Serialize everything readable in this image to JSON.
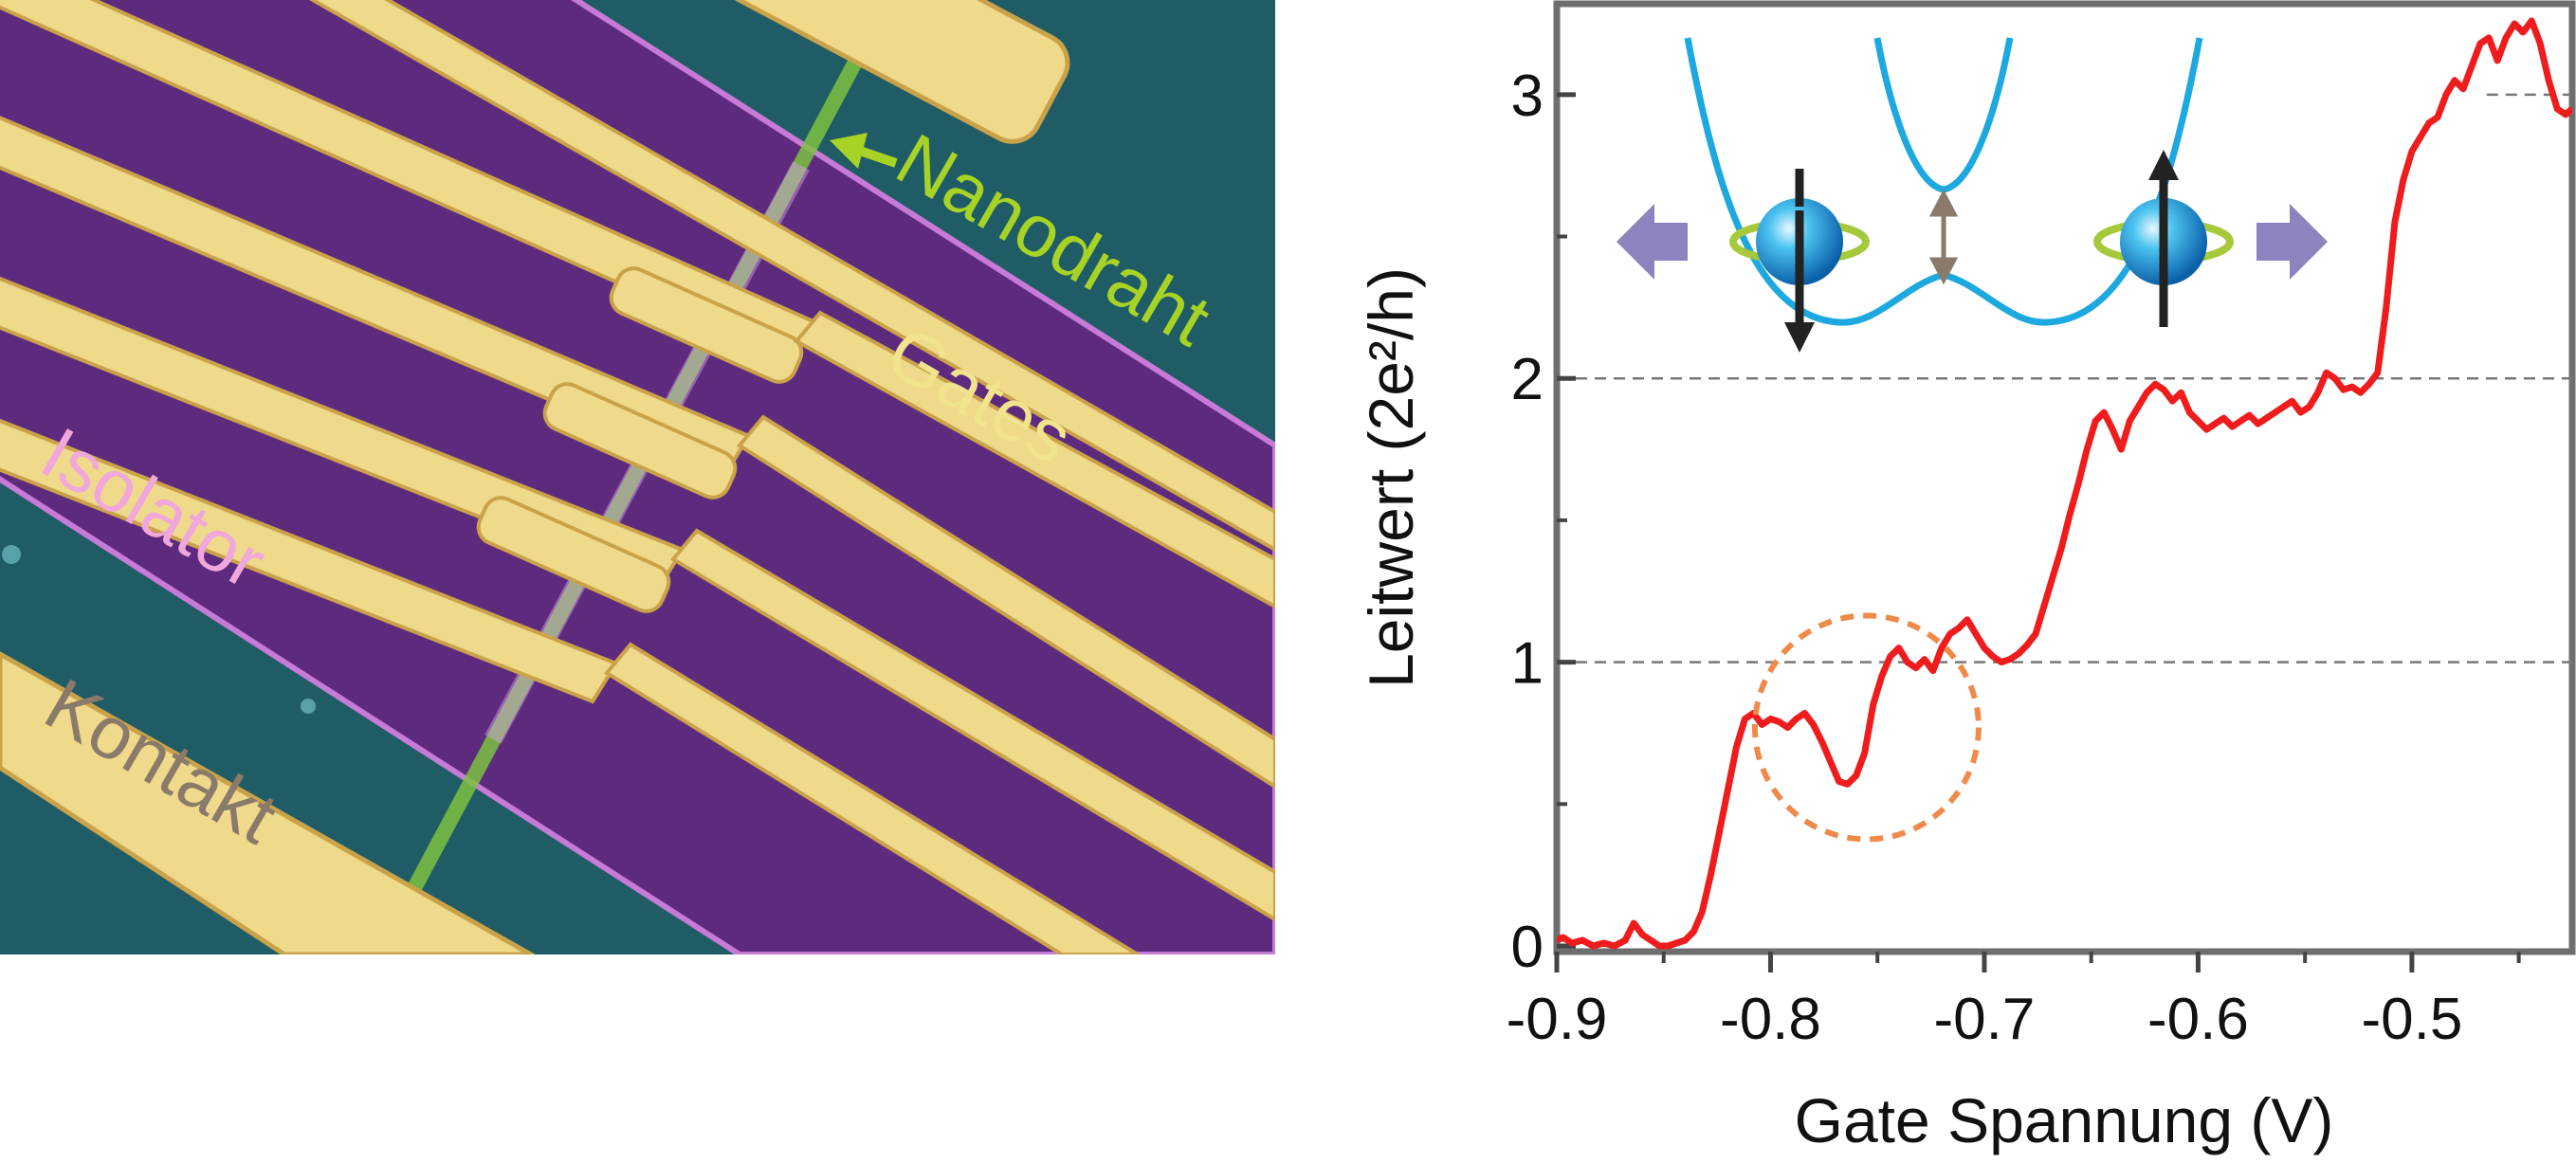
{
  "sem_image": {
    "labels": {
      "nanowire": "Nanodraht",
      "gates": "Gates",
      "insulator": "Isolator",
      "contact": "Kontakt"
    },
    "colors": {
      "background": "#1f5c66",
      "insulator": "#5e2a7e",
      "insulator_edge": "#c77ad6",
      "gate": "#efd98a",
      "gate_edge": "#c9a24a",
      "nanowire": "#7cc241",
      "nanowire_label": "#a7d226",
      "gates_label": "#f2e38e",
      "insulator_label": "#f0a8dc",
      "contact_label": "#8a7a6a"
    }
  },
  "inset": {
    "band_color": "#1ea8e0",
    "spin_ring_color": "#a5c93a",
    "arrow_color": "#8b84bf",
    "gap_arrow_color": "#8a7a6a",
    "spin_arrow_color": "#222222"
  },
  "chart_data": {
    "type": "line",
    "xlabel": "Gate Spannung (V)",
    "ylabel": "Leitwert (2e²/h)",
    "xlim": [
      -0.9,
      -0.425
    ],
    "ylim": [
      0,
      3.3
    ],
    "x_ticks": [
      -0.9,
      -0.8,
      -0.7,
      -0.6,
      -0.5
    ],
    "x_tick_labels": [
      "-0.9",
      "-0.8",
      "-0.7",
      "-0.6",
      "-0.5"
    ],
    "y_ticks": [
      0,
      1,
      2,
      3
    ],
    "y_tick_labels": [
      "0",
      "1",
      "2",
      "3"
    ],
    "reference_lines_y": [
      1,
      2,
      3
    ],
    "line_color": "#ee1c1c",
    "highlight_circle": {
      "center": [
        -0.755,
        0.77
      ],
      "color": "#f08a4b",
      "style": "dashed"
    },
    "series": [
      {
        "x": [
          -0.9,
          -0.897,
          -0.893,
          -0.888,
          -0.883,
          -0.878,
          -0.873,
          -0.868,
          -0.864,
          -0.86,
          -0.856,
          -0.852,
          -0.848,
          -0.844,
          -0.84,
          -0.836,
          -0.832,
          -0.828,
          -0.824,
          -0.82,
          -0.816,
          -0.812,
          -0.808,
          -0.804,
          -0.8,
          -0.796,
          -0.792,
          -0.788,
          -0.784,
          -0.78,
          -0.776,
          -0.772,
          -0.768,
          -0.764,
          -0.76,
          -0.756,
          -0.752,
          -0.748,
          -0.744,
          -0.74,
          -0.736,
          -0.732,
          -0.728,
          -0.724,
          -0.72,
          -0.716,
          -0.712,
          -0.708,
          -0.704,
          -0.7,
          -0.696,
          -0.692,
          -0.688,
          -0.684,
          -0.68,
          -0.676,
          -0.672,
          -0.668,
          -0.664,
          -0.66,
          -0.656,
          -0.652,
          -0.648,
          -0.644,
          -0.64,
          -0.636,
          -0.632,
          -0.628,
          -0.624,
          -0.62,
          -0.616,
          -0.612,
          -0.608,
          -0.604,
          -0.6,
          -0.596,
          -0.592,
          -0.588,
          -0.584,
          -0.58,
          -0.576,
          -0.572,
          -0.568,
          -0.564,
          -0.56,
          -0.556,
          -0.552,
          -0.548,
          -0.544,
          -0.54,
          -0.536,
          -0.532,
          -0.528,
          -0.524,
          -0.52,
          -0.516,
          -0.512,
          -0.508,
          -0.504,
          -0.5,
          -0.496,
          -0.492,
          -0.488,
          -0.484,
          -0.48,
          -0.476,
          -0.472,
          -0.468,
          -0.464,
          -0.46,
          -0.456,
          -0.452,
          -0.448,
          -0.444,
          -0.44,
          -0.436,
          -0.432,
          -0.428,
          -0.425
        ],
        "values": [
          0.02,
          0.03,
          0.01,
          0.02,
          0.0,
          0.01,
          0.0,
          0.02,
          0.08,
          0.04,
          0.02,
          0.0,
          0.0,
          0.01,
          0.02,
          0.05,
          0.12,
          0.25,
          0.4,
          0.55,
          0.7,
          0.8,
          0.82,
          0.78,
          0.8,
          0.79,
          0.77,
          0.8,
          0.82,
          0.78,
          0.72,
          0.65,
          0.58,
          0.57,
          0.6,
          0.68,
          0.85,
          0.95,
          1.02,
          1.05,
          1.0,
          0.98,
          1.01,
          0.97,
          1.05,
          1.1,
          1.12,
          1.15,
          1.1,
          1.05,
          1.02,
          1.0,
          1.01,
          1.03,
          1.06,
          1.1,
          1.2,
          1.3,
          1.4,
          1.52,
          1.63,
          1.75,
          1.85,
          1.88,
          1.82,
          1.75,
          1.85,
          1.9,
          1.95,
          1.98,
          1.96,
          1.92,
          1.95,
          1.88,
          1.85,
          1.82,
          1.84,
          1.86,
          1.83,
          1.85,
          1.87,
          1.84,
          1.86,
          1.88,
          1.9,
          1.92,
          1.88,
          1.9,
          1.95,
          2.02,
          2.0,
          1.96,
          1.97,
          1.95,
          1.98,
          2.02,
          2.25,
          2.55,
          2.7,
          2.8,
          2.85,
          2.9,
          2.92,
          3.0,
          3.05,
          3.02,
          3.1,
          3.18,
          3.2,
          3.12,
          3.2,
          3.25,
          3.22,
          3.26,
          3.18,
          3.05,
          2.95,
          2.93,
          2.95
        ]
      }
    ]
  }
}
